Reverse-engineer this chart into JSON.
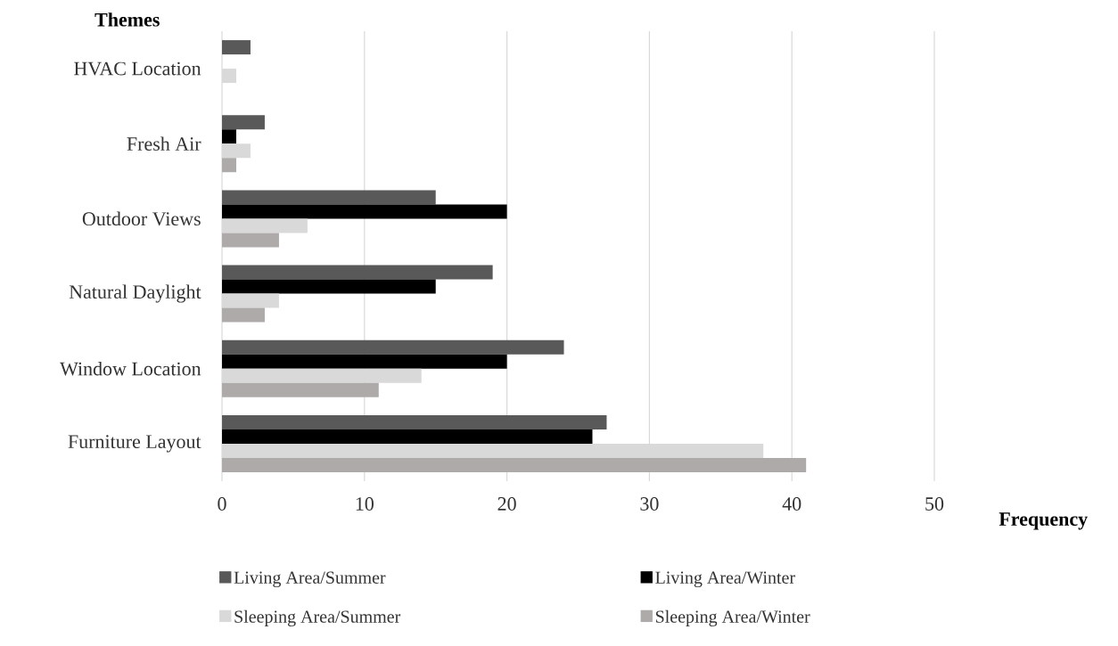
{
  "chart_data": {
    "type": "bar",
    "orientation": "horizontal",
    "xlabel": "Frequency",
    "ylabel": "Themes",
    "categories": [
      "HVAC Location",
      "Fresh Air",
      "Outdoor Views",
      "Natural Daylight",
      "Window Location",
      "Furniture Layout"
    ],
    "series": [
      {
        "name": "Living Area/Summer",
        "color": "#595959",
        "values": [
          2,
          3,
          15,
          19,
          24,
          27
        ]
      },
      {
        "name": "Living Area/Winter",
        "color": "#000000",
        "values": [
          0,
          1,
          20,
          15,
          20,
          26
        ]
      },
      {
        "name": "Sleeping Area/Summer",
        "color": "#d9d9d9",
        "values": [
          1,
          2,
          6,
          4,
          14,
          38
        ]
      },
      {
        "name": "Sleeping Area/Winter",
        "color": "#aeaaaa",
        "values": [
          0,
          1,
          4,
          3,
          11,
          41
        ]
      }
    ],
    "xlim": [
      0,
      50
    ],
    "xticks": [
      0,
      10,
      20,
      30,
      40,
      50
    ],
    "grid": "x",
    "legend": "bottom"
  }
}
